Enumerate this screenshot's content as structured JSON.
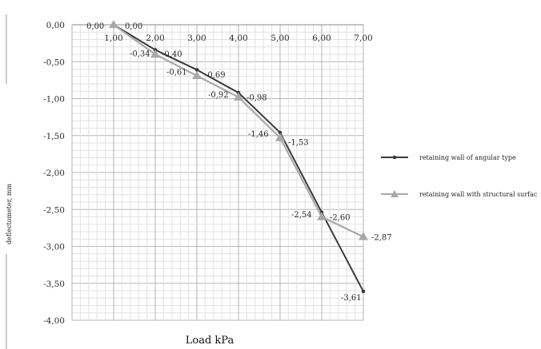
{
  "chart_data": {
    "type": "line",
    "xlabel": "Load kPa",
    "ylabel": "deflectometer, mm",
    "x_categories": [
      "1,00",
      "2,00",
      "3,00",
      "4,00",
      "5,00",
      "6,00",
      "7,00"
    ],
    "y_ticks": [
      "0,00",
      "-0,50",
      "-1,00",
      "-1,50",
      "-2,00",
      "-2,50",
      "-3,00",
      "-3,50",
      "-4,00"
    ],
    "ylim": [
      -4.0,
      0.0
    ],
    "grid": true,
    "legend_position": "right",
    "series": [
      {
        "name": "retaining wall of angular type",
        "color": "#3a3a3a",
        "marker": "circle",
        "x": [
          1,
          2,
          3,
          4,
          5,
          6,
          7
        ],
        "y": [
          0.0,
          -0.34,
          -0.61,
          -0.92,
          -1.46,
          -2.54,
          -3.61
        ],
        "labels": [
          "0,00",
          "-0,34",
          "-0,61",
          "-0,92",
          "-1,46",
          "-2,54",
          "-3,61"
        ]
      },
      {
        "name": "retaining wall with structural surfac",
        "color": "#a8a8a8",
        "marker": "triangle",
        "x": [
          1,
          2,
          3,
          4,
          5,
          6,
          7
        ],
        "y": [
          0.0,
          -0.4,
          -0.69,
          -0.98,
          -1.53,
          -2.6,
          -2.87
        ],
        "labels": [
          "0,00",
          "-0,40",
          "-0,69",
          "-0,98",
          "-1,53",
          "-2,60",
          "-2,87"
        ]
      }
    ]
  }
}
